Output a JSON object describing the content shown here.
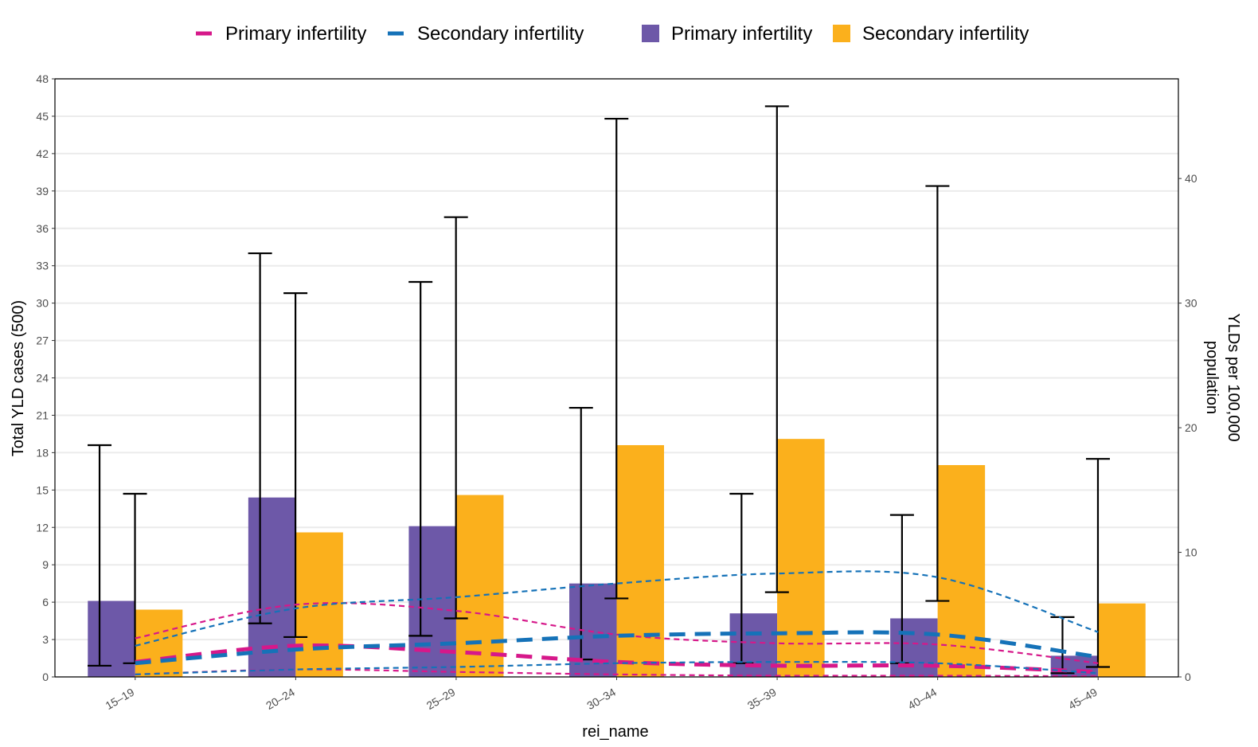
{
  "chart_data": {
    "type": "bar",
    "xlabel": "rei_name",
    "ylabel_left": "Total YLD cases (500)",
    "ylabel_right_lines": [
      "YLDs per 100,000",
      "population"
    ],
    "categories": [
      "15–19",
      "20–24",
      "25–29",
      "30–34",
      "35–39",
      "40–44",
      "45–49"
    ],
    "y_left": {
      "min": 0,
      "max": 48,
      "ticks": [
        0,
        3,
        6,
        9,
        12,
        15,
        18,
        21,
        24,
        27,
        30,
        33,
        36,
        39,
        42,
        45,
        48
      ]
    },
    "y_right": {
      "min": 0,
      "max": 48,
      "ticks": [
        0,
        10,
        20,
        30,
        40
      ]
    },
    "grid": "horizontal",
    "legend_position": "top",
    "legend": {
      "lines": [
        {
          "label": "Primary infertility",
          "color": "#d6188a"
        },
        {
          "label": "Secondary infertility",
          "color": "#1572b8"
        }
      ],
      "bars": [
        {
          "label": "Primary infertility",
          "color": "#6d58a8"
        },
        {
          "label": "Secondary infertility",
          "color": "#fbb01c"
        }
      ]
    },
    "bar_series": [
      {
        "name": "Primary infertility",
        "color": "#6d58a8",
        "values": [
          6.1,
          14.4,
          12.1,
          7.5,
          5.1,
          4.7,
          1.7
        ],
        "lower": [
          0.9,
          4.3,
          3.3,
          1.4,
          1.1,
          1.1,
          0.3
        ],
        "upper": [
          18.6,
          34.0,
          31.7,
          21.6,
          14.7,
          13.0,
          4.8
        ]
      },
      {
        "name": "Secondary infertility",
        "color": "#fbb01c",
        "values": [
          5.4,
          11.6,
          14.6,
          18.6,
          19.1,
          17.0,
          5.9
        ],
        "lower": [
          1.1,
          3.2,
          4.7,
          6.3,
          6.8,
          6.1,
          0.8
        ],
        "upper": [
          14.7,
          30.8,
          36.9,
          44.8,
          45.8,
          39.4,
          17.5
        ]
      }
    ],
    "line_series": [
      {
        "name": "Primary infertility",
        "color": "#d6188a",
        "mean": [
          1.2,
          2.5,
          2.0,
          1.2,
          0.9,
          0.9,
          0.4
        ],
        "upper": [
          3.1,
          5.8,
          5.3,
          3.4,
          2.7,
          2.6,
          1.1
        ],
        "lower": [
          0.2,
          0.6,
          0.4,
          0.2,
          0.1,
          0.1,
          0.05
        ]
      },
      {
        "name": "Secondary infertility",
        "color": "#1572b8",
        "mean": [
          1.1,
          2.2,
          2.7,
          3.3,
          3.5,
          3.4,
          1.6
        ],
        "upper": [
          2.5,
          5.5,
          6.4,
          7.5,
          8.3,
          8.0,
          3.6
        ],
        "lower": [
          0.2,
          0.6,
          0.8,
          1.1,
          1.2,
          1.1,
          0.3
        ]
      }
    ]
  }
}
